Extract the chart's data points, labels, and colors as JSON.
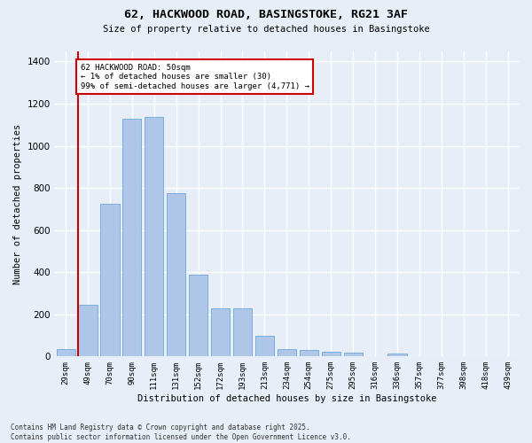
{
  "title_line1": "62, HACKWOOD ROAD, BASINGSTOKE, RG21 3AF",
  "title_line2": "Size of property relative to detached houses in Basingstoke",
  "xlabel": "Distribution of detached houses by size in Basingstoke",
  "ylabel": "Number of detached properties",
  "categories": [
    "29sqm",
    "49sqm",
    "70sqm",
    "90sqm",
    "111sqm",
    "131sqm",
    "152sqm",
    "172sqm",
    "193sqm",
    "213sqm",
    "234sqm",
    "254sqm",
    "275sqm",
    "295sqm",
    "316sqm",
    "336sqm",
    "357sqm",
    "377sqm",
    "398sqm",
    "418sqm",
    "439sqm"
  ],
  "values": [
    35,
    245,
    725,
    1130,
    1135,
    775,
    390,
    230,
    230,
    100,
    35,
    30,
    22,
    18,
    0,
    12,
    0,
    0,
    0,
    0,
    0
  ],
  "bar_color": "#aec6e8",
  "bar_edge_color": "#5a9fd4",
  "annotation_box_text": "62 HACKWOOD ROAD: 50sqm\n← 1% of detached houses are smaller (30)\n99% of semi-detached houses are larger (4,771) →",
  "annotation_box_color": "#ffffff",
  "annotation_box_edge_color": "#cc0000",
  "vline_color": "#cc0000",
  "ylim": [
    0,
    1450
  ],
  "background_color": "#e8eef7",
  "grid_color": "#ffffff",
  "footnote": "Contains HM Land Registry data © Crown copyright and database right 2025.\nContains public sector information licensed under the Open Government Licence v3.0."
}
